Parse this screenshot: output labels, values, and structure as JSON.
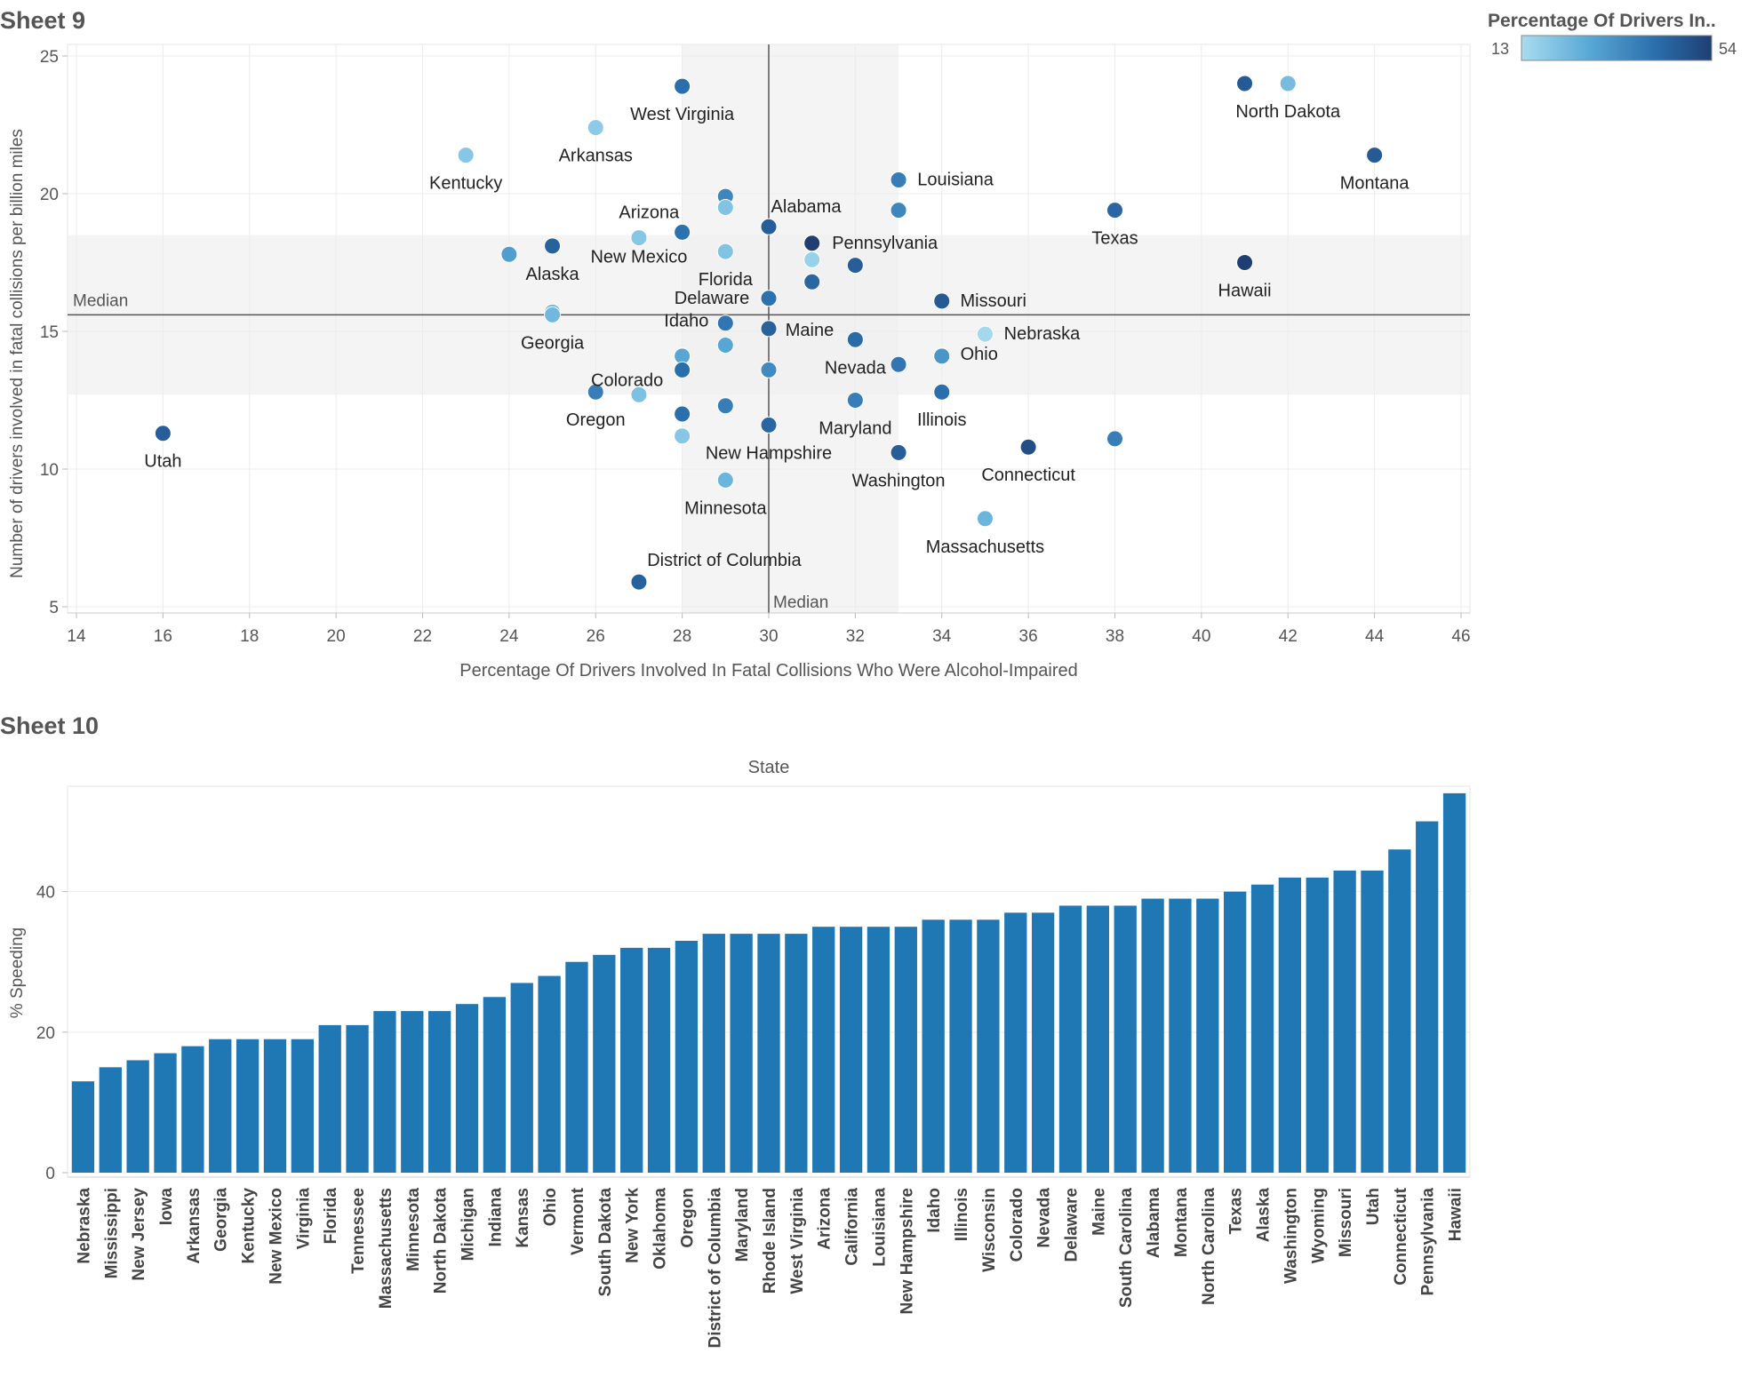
{
  "sheets": [
    {
      "title": "Sheet 9"
    },
    {
      "title": "Sheet 10"
    }
  ],
  "legend": {
    "title": "Percentage Of Drivers In..",
    "min_label": "13",
    "max_label": "54",
    "min": 13,
    "max": 54,
    "color_low": "#a8dcef",
    "color_high": "#1f3f73"
  },
  "chart_data": [
    {
      "type": "scatter",
      "title": "Sheet 9",
      "xlabel": "Percentage Of Drivers Involved In Fatal Collisions Who Were Alcohol-Impaired",
      "ylabel": "Number of drivers involved in fatal collisions per billion miles",
      "xlim": [
        14,
        46
      ],
      "ylim": [
        5,
        25
      ],
      "x_ticks": [
        14,
        16,
        18,
        20,
        22,
        24,
        26,
        28,
        30,
        32,
        34,
        36,
        38,
        40,
        42,
        44,
        46
      ],
      "y_ticks": [
        5,
        10,
        15,
        20,
        25
      ],
      "grid": true,
      "reference_lines": [
        {
          "axis": "x",
          "value": 30,
          "label": "Median",
          "band": [
            28,
            33
          ]
        },
        {
          "axis": "y",
          "value": 15.6,
          "label": "Median",
          "band": [
            12.7,
            18.5
          ]
        }
      ],
      "color_by": "Percentage Of Drivers In..",
      "points": [
        {
          "x": 28,
          "y": 23.9,
          "c": 42,
          "label": "West Virginia"
        },
        {
          "x": 26,
          "y": 22.4,
          "c": 18,
          "label": "Arkansas"
        },
        {
          "x": 23,
          "y": 21.4,
          "c": 19,
          "label": "Kentucky"
        },
        {
          "x": 29,
          "y": 19.9,
          "c": 36,
          "label": ""
        },
        {
          "x": 29,
          "y": 19.5,
          "c": 20,
          "label": "Arizona"
        },
        {
          "x": 30,
          "y": 18.8,
          "c": 46,
          "label": "Alabama"
        },
        {
          "x": 28,
          "y": 18.6,
          "c": 41,
          "label": ""
        },
        {
          "x": 27,
          "y": 18.4,
          "c": 19,
          "label": "New Mexico"
        },
        {
          "x": 25,
          "y": 18.1,
          "c": 45,
          "label": "Alaska"
        },
        {
          "x": 24,
          "y": 17.8,
          "c": 30,
          "label": ""
        },
        {
          "x": 29,
          "y": 17.9,
          "c": 20,
          "label": "Florida"
        },
        {
          "x": 31,
          "y": 18.2,
          "c": 54,
          "label": "Pennsylvania"
        },
        {
          "x": 31,
          "y": 17.6,
          "c": 16,
          "label": ""
        },
        {
          "x": 32,
          "y": 17.4,
          "c": 46,
          "label": ""
        },
        {
          "x": 31,
          "y": 16.8,
          "c": 44,
          "label": ""
        },
        {
          "x": 33,
          "y": 20.5,
          "c": 38,
          "label": "Louisiana"
        },
        {
          "x": 33,
          "y": 19.4,
          "c": 36,
          "label": ""
        },
        {
          "x": 38,
          "y": 19.4,
          "c": 44,
          "label": "Texas"
        },
        {
          "x": 41,
          "y": 24.0,
          "c": 47,
          "label": ""
        },
        {
          "x": 42,
          "y": 24.0,
          "c": 22,
          "label": "North Dakota"
        },
        {
          "x": 44,
          "y": 21.4,
          "c": 47,
          "label": "Montana"
        },
        {
          "x": 41,
          "y": 17.5,
          "c": 54,
          "label": "Hawaii"
        },
        {
          "x": 30,
          "y": 16.2,
          "c": 41,
          "label": "Delaware"
        },
        {
          "x": 34,
          "y": 16.1,
          "c": 47,
          "label": "Missouri"
        },
        {
          "x": 25,
          "y": 15.7,
          "c": 22,
          "label": ""
        },
        {
          "x": 25,
          "y": 15.6,
          "c": 23,
          "label": "Georgia"
        },
        {
          "x": 29,
          "y": 15.3,
          "c": 40,
          "label": "Idaho"
        },
        {
          "x": 30,
          "y": 15.1,
          "c": 45,
          "label": "Maine"
        },
        {
          "x": 29,
          "y": 14.5,
          "c": 28,
          "label": ""
        },
        {
          "x": 35,
          "y": 14.9,
          "c": 14,
          "label": "Nebraska"
        },
        {
          "x": 32,
          "y": 14.7,
          "c": 43,
          "label": "Nevada"
        },
        {
          "x": 34,
          "y": 14.1,
          "c": 32,
          "label": "Ohio"
        },
        {
          "x": 33,
          "y": 13.8,
          "c": 40,
          "label": ""
        },
        {
          "x": 28,
          "y": 14.1,
          "c": 28,
          "label": ""
        },
        {
          "x": 28,
          "y": 13.6,
          "c": 42,
          "label": "Colorado"
        },
        {
          "x": 30,
          "y": 13.6,
          "c": 35,
          "label": ""
        },
        {
          "x": 26,
          "y": 12.8,
          "c": 38,
          "label": "Oregon"
        },
        {
          "x": 27,
          "y": 12.7,
          "c": 21,
          "label": ""
        },
        {
          "x": 34,
          "y": 12.8,
          "c": 42,
          "label": "Illinois"
        },
        {
          "x": 32,
          "y": 12.5,
          "c": 38,
          "label": "Maryland"
        },
        {
          "x": 29,
          "y": 12.3,
          "c": 38,
          "label": ""
        },
        {
          "x": 28,
          "y": 12.0,
          "c": 42,
          "label": ""
        },
        {
          "x": 30,
          "y": 11.6,
          "c": 44,
          "label": "New Hampshire"
        },
        {
          "x": 28,
          "y": 11.2,
          "c": 19,
          "label": ""
        },
        {
          "x": 16,
          "y": 11.3,
          "c": 46,
          "label": "Utah"
        },
        {
          "x": 38,
          "y": 11.1,
          "c": 38,
          "label": ""
        },
        {
          "x": 36,
          "y": 10.8,
          "c": 50,
          "label": "Connecticut"
        },
        {
          "x": 33,
          "y": 10.6,
          "c": 46,
          "label": "Washington"
        },
        {
          "x": 29,
          "y": 9.6,
          "c": 24,
          "label": "Minnesota"
        },
        {
          "x": 35,
          "y": 8.2,
          "c": 24,
          "label": "Massachusetts"
        },
        {
          "x": 27,
          "y": 5.9,
          "c": 45,
          "label": "District of Columbia"
        }
      ]
    },
    {
      "type": "bar",
      "title": "Sheet 10",
      "header": "State",
      "xlabel": "",
      "ylabel": "% Speeding",
      "ylim": [
        0,
        55
      ],
      "y_ticks": [
        0,
        20,
        40
      ],
      "grid": true,
      "bar_color": "#1f77b4",
      "categories": [
        "Nebraska",
        "Mississippi",
        "New Jersey",
        "Iowa",
        "Arkansas",
        "Georgia",
        "Kentucky",
        "New Mexico",
        "Virginia",
        "Florida",
        "Tennessee",
        "Massachusetts",
        "Minnesota",
        "North Dakota",
        "Michigan",
        "Indiana",
        "Kansas",
        "Ohio",
        "Vermont",
        "South Dakota",
        "New York",
        "Oklahoma",
        "Oregon",
        "District of Columbia",
        "Maryland",
        "Rhode Island",
        "West Virginia",
        "Arizona",
        "California",
        "Louisiana",
        "New Hampshire",
        "Idaho",
        "Illinois",
        "Wisconsin",
        "Colorado",
        "Nevada",
        "Delaware",
        "Maine",
        "South Carolina",
        "Alabama",
        "Montana",
        "North Carolina",
        "Texas",
        "Alaska",
        "Washington",
        "Wyoming",
        "Missouri",
        "Utah",
        "Connecticut",
        "Pennsylvania",
        "Hawaii"
      ],
      "values": [
        13,
        15,
        16,
        17,
        18,
        19,
        19,
        19,
        19,
        21,
        21,
        23,
        23,
        23,
        24,
        25,
        27,
        28,
        30,
        31,
        32,
        32,
        33,
        34,
        34,
        34,
        34,
        35,
        35,
        35,
        35,
        36,
        36,
        36,
        37,
        37,
        38,
        38,
        38,
        39,
        39,
        39,
        40,
        41,
        42,
        42,
        43,
        43,
        46,
        50,
        54
      ]
    }
  ]
}
